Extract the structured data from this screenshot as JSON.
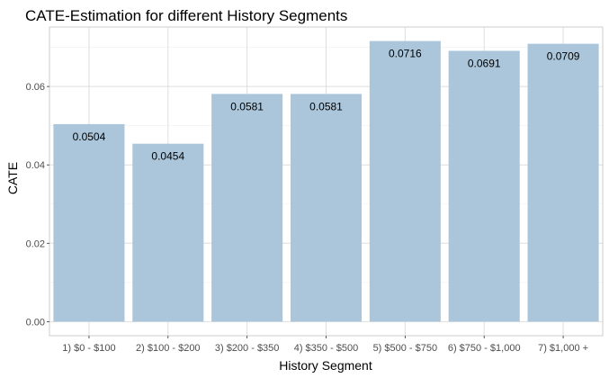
{
  "chart_data": {
    "type": "bar",
    "title": "CATE-Estimation for different History Segments",
    "xlabel": "History Segment",
    "ylabel": "CATE",
    "categories": [
      "1) $0 - $100",
      "2) $100 - $200",
      "3) $200 - $350",
      "4) $350 - $500",
      "5) $500 - $750",
      "6) $750 - $1,000",
      "7) $1,000 +"
    ],
    "values": [
      0.0504,
      0.0454,
      0.0581,
      0.0581,
      0.0716,
      0.0691,
      0.0709
    ],
    "value_labels": [
      "0.0504",
      "0.0454",
      "0.0581",
      "0.0581",
      "0.0716",
      "0.0691",
      "0.0709"
    ],
    "yticks": [
      0.0,
      0.02,
      0.04,
      0.06
    ],
    "ytick_labels": [
      "0.00",
      "0.02",
      "0.04",
      "0.06"
    ],
    "ylim": [
      -0.00358,
      0.07518
    ],
    "grid": true,
    "legend": "none",
    "colors": {
      "bar": "#abc6da",
      "panel_background": "#ffffff",
      "major_grid": "#dedede",
      "minor_grid": "#efefef",
      "panel_border": "#cccccc"
    }
  }
}
